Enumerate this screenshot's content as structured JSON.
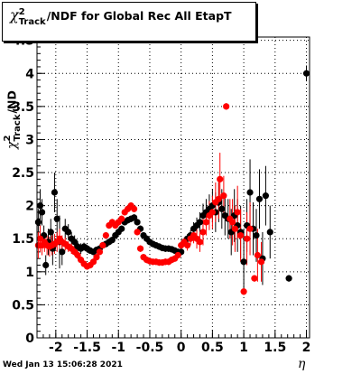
{
  "chart_data": {
    "type": "scatter",
    "title": {
      "prefix": "χ",
      "sup": "2",
      "sub": "Track",
      "suffix": "/NDF for Global Rec All EtapT"
    },
    "ylabel": {
      "prefix": "χ",
      "sup": "2",
      "sub": "Track",
      "suffix": "/ND"
    },
    "xlabel": "η",
    "xlim": [
      -2.3,
      2.05
    ],
    "ylim": [
      0,
      4.55
    ],
    "xticks": [
      "-2",
      "-1.5",
      "-1",
      "-0.5",
      "0",
      "0.5",
      "1",
      "1.5",
      "2"
    ],
    "xtick_values": [
      -2,
      -1.5,
      -1,
      -0.5,
      0,
      0.5,
      1,
      1.5,
      2
    ],
    "yticks": [
      "0",
      "0.5",
      "1",
      "1.5",
      "2",
      "2.5",
      "3",
      "3.5",
      "4",
      "4.5"
    ],
    "ytick_values": [
      0,
      0.5,
      1,
      1.5,
      2,
      2.5,
      3,
      3.5,
      4,
      4.5
    ],
    "grid": true,
    "series": [
      {
        "color": "#000000",
        "points": [
          [
            -2.28,
            1.75,
            0.2
          ],
          [
            -2.25,
            2.0,
            0.25
          ],
          [
            -2.22,
            1.9,
            0.2
          ],
          [
            -2.19,
            1.55,
            0.15
          ],
          [
            -2.16,
            1.1,
            0.15
          ],
          [
            -2.12,
            1.45,
            0.2
          ],
          [
            -2.08,
            1.6,
            0.2
          ],
          [
            -2.05,
            1.35,
            0.25
          ],
          [
            -2.02,
            2.2,
            0.3
          ],
          [
            -1.98,
            1.8,
            0.3
          ],
          [
            -1.94,
            1.45,
            0.4
          ],
          [
            -1.9,
            1.3,
            0.2
          ],
          [
            -1.85,
            1.65,
            0.15
          ],
          [
            -1.8,
            1.6,
            0.12
          ],
          [
            -1.75,
            1.5,
            0.1
          ],
          [
            -1.7,
            1.45,
            0.1
          ],
          [
            -1.65,
            1.38,
            0.08
          ],
          [
            -1.6,
            1.35,
            0.08
          ],
          [
            -1.55,
            1.38,
            0.06
          ],
          [
            -1.5,
            1.35,
            0.06
          ],
          [
            -1.45,
            1.32,
            0.05
          ],
          [
            -1.4,
            1.3,
            0.05
          ],
          [
            -1.35,
            1.33,
            0.05
          ],
          [
            -1.3,
            1.35,
            0.05
          ],
          [
            -1.25,
            1.4,
            0.05
          ],
          [
            -1.2,
            1.42,
            0.05
          ],
          [
            -1.15,
            1.45,
            0.05
          ],
          [
            -1.1,
            1.48,
            0.05
          ],
          [
            -1.05,
            1.55,
            0.05
          ],
          [
            -1.0,
            1.6,
            0.05
          ],
          [
            -0.95,
            1.65,
            0.05
          ],
          [
            -0.9,
            1.75,
            0.05
          ],
          [
            -0.85,
            1.78,
            0.05
          ],
          [
            -0.8,
            1.8,
            0.05
          ],
          [
            -0.75,
            1.82,
            0.05
          ],
          [
            -0.7,
            1.75,
            0.05
          ],
          [
            -0.65,
            1.65,
            0.05
          ],
          [
            -0.6,
            1.55,
            0.05
          ],
          [
            -0.55,
            1.5,
            0.05
          ],
          [
            -0.5,
            1.45,
            0.05
          ],
          [
            -0.45,
            1.42,
            0.05
          ],
          [
            -0.4,
            1.4,
            0.05
          ],
          [
            -0.35,
            1.38,
            0.05
          ],
          [
            -0.3,
            1.36,
            0.05
          ],
          [
            -0.25,
            1.35,
            0.05
          ],
          [
            -0.2,
            1.35,
            0.05
          ],
          [
            -0.15,
            1.34,
            0.05
          ],
          [
            -0.1,
            1.32,
            0.05
          ],
          [
            -0.05,
            1.3,
            0.05
          ],
          [
            0.0,
            1.3,
            0.05
          ],
          [
            0.05,
            1.45,
            0.06
          ],
          [
            0.1,
            1.5,
            0.07
          ],
          [
            0.15,
            1.55,
            0.08
          ],
          [
            0.2,
            1.65,
            0.1
          ],
          [
            0.25,
            1.7,
            0.12
          ],
          [
            0.3,
            1.75,
            0.15
          ],
          [
            0.35,
            1.85,
            0.18
          ],
          [
            0.4,
            1.9,
            0.2
          ],
          [
            0.45,
            1.95,
            0.22
          ],
          [
            0.5,
            2.0,
            0.25
          ],
          [
            0.55,
            1.9,
            0.3
          ],
          [
            0.6,
            2.05,
            0.3
          ],
          [
            0.65,
            1.95,
            0.3
          ],
          [
            0.7,
            1.85,
            0.3
          ],
          [
            0.75,
            1.8,
            0.3
          ],
          [
            0.8,
            1.6,
            0.35
          ],
          [
            0.85,
            1.85,
            0.4
          ],
          [
            0.9,
            1.7,
            0.4
          ],
          [
            0.95,
            1.6,
            0.4
          ],
          [
            1.0,
            1.15,
            0.5
          ],
          [
            1.05,
            1.7,
            0.4
          ],
          [
            1.1,
            2.2,
            0.5
          ],
          [
            1.15,
            1.65,
            0.4
          ],
          [
            1.2,
            1.55,
            0.4
          ],
          [
            1.25,
            2.1,
            0.45
          ],
          [
            1.3,
            1.2,
            0.4
          ],
          [
            1.35,
            2.15,
            0.45
          ],
          [
            1.42,
            1.6,
            0.4
          ],
          [
            1.72,
            0.9,
            0.05
          ],
          [
            2.0,
            4.0,
            0.12
          ]
        ]
      },
      {
        "color": "#ff0000",
        "points": [
          [
            -2.28,
            1.4,
            0.2
          ],
          [
            -2.25,
            1.5,
            0.2
          ],
          [
            -2.22,
            1.4,
            0.15
          ],
          [
            -2.18,
            1.45,
            0.15
          ],
          [
            -2.14,
            1.4,
            0.15
          ],
          [
            -2.1,
            1.38,
            0.15
          ],
          [
            -2.06,
            1.4,
            0.15
          ],
          [
            -2.02,
            1.42,
            0.15
          ],
          [
            -1.98,
            1.45,
            0.15
          ],
          [
            -1.94,
            1.5,
            0.15
          ],
          [
            -1.9,
            1.45,
            0.1
          ],
          [
            -1.85,
            1.42,
            0.1
          ],
          [
            -1.8,
            1.38,
            0.08
          ],
          [
            -1.75,
            1.35,
            0.08
          ],
          [
            -1.7,
            1.3,
            0.06
          ],
          [
            -1.65,
            1.25,
            0.06
          ],
          [
            -1.6,
            1.18,
            0.05
          ],
          [
            -1.55,
            1.12,
            0.05
          ],
          [
            -1.5,
            1.08,
            0.05
          ],
          [
            -1.45,
            1.1,
            0.05
          ],
          [
            -1.4,
            1.15,
            0.05
          ],
          [
            -1.35,
            1.22,
            0.05
          ],
          [
            -1.3,
            1.3,
            0.05
          ],
          [
            -1.25,
            1.4,
            0.05
          ],
          [
            -1.2,
            1.55,
            0.05
          ],
          [
            -1.15,
            1.7,
            0.05
          ],
          [
            -1.1,
            1.75,
            0.05
          ],
          [
            -1.05,
            1.7,
            0.05
          ],
          [
            -1.0,
            1.75,
            0.05
          ],
          [
            -0.95,
            1.8,
            0.05
          ],
          [
            -0.9,
            1.9,
            0.05
          ],
          [
            -0.85,
            1.95,
            0.05
          ],
          [
            -0.8,
            2.0,
            0.05
          ],
          [
            -0.75,
            1.95,
            0.05
          ],
          [
            -0.7,
            1.6,
            0.05
          ],
          [
            -0.65,
            1.35,
            0.05
          ],
          [
            -0.6,
            1.22,
            0.05
          ],
          [
            -0.55,
            1.18,
            0.05
          ],
          [
            -0.5,
            1.16,
            0.05
          ],
          [
            -0.45,
            1.15,
            0.05
          ],
          [
            -0.4,
            1.15,
            0.05
          ],
          [
            -0.35,
            1.14,
            0.05
          ],
          [
            -0.3,
            1.14,
            0.05
          ],
          [
            -0.25,
            1.15,
            0.05
          ],
          [
            -0.2,
            1.15,
            0.05
          ],
          [
            -0.15,
            1.18,
            0.05
          ],
          [
            -0.1,
            1.2,
            0.05
          ],
          [
            -0.05,
            1.25,
            0.05
          ],
          [
            0.0,
            1.4,
            0.06
          ],
          [
            0.05,
            1.45,
            0.07
          ],
          [
            0.1,
            1.4,
            0.08
          ],
          [
            0.15,
            1.5,
            0.1
          ],
          [
            0.2,
            1.55,
            0.12
          ],
          [
            0.25,
            1.5,
            0.15
          ],
          [
            0.3,
            1.45,
            0.15
          ],
          [
            0.35,
            1.6,
            0.2
          ],
          [
            0.4,
            1.75,
            0.2
          ],
          [
            0.45,
            1.85,
            0.22
          ],
          [
            0.5,
            1.9,
            0.25
          ],
          [
            0.55,
            2.05,
            0.3
          ],
          [
            0.6,
            2.1,
            0.3
          ],
          [
            0.62,
            2.4,
            0.4
          ],
          [
            0.68,
            2.15,
            0.3
          ],
          [
            0.72,
            3.5,
            0.05
          ],
          [
            0.78,
            1.8,
            0.3
          ],
          [
            0.82,
            1.75,
            0.35
          ],
          [
            0.86,
            1.65,
            0.35
          ],
          [
            0.9,
            1.9,
            0.4
          ],
          [
            0.95,
            1.55,
            0.4
          ],
          [
            1.0,
            0.7,
            0.05
          ],
          [
            1.05,
            1.5,
            0.4
          ],
          [
            1.1,
            1.65,
            0.4
          ],
          [
            1.17,
            0.9,
            0.05
          ],
          [
            1.22,
            1.25,
            0.4
          ],
          [
            1.28,
            1.15,
            0.3
          ]
        ]
      }
    ]
  },
  "footer": {
    "timestamp": "Wed Jan 13 15:06:28 2021"
  }
}
